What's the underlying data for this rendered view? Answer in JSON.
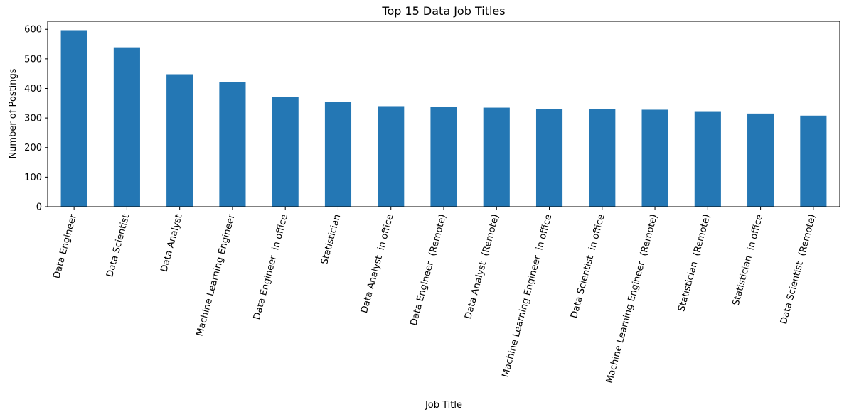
{
  "chart_data": {
    "type": "bar",
    "title": "Top 15 Data Job Titles",
    "xlabel": "Job Title",
    "ylabel": "Number of Postings",
    "categories": [
      "Data Engineer",
      "Data Scientist",
      "Data Analyst",
      "Machine Learning Engineer",
      "Data Engineer  in office",
      "Statistician",
      "Data Analyst  in office",
      "Data Engineer  (Remote)",
      "Data Analyst  (Remote)",
      "Machine Learning Engineer  in office",
      "Data Scientist  in office",
      "Machine Learning Engineer  (Remote)",
      "Statistician  (Remote)",
      "Statistician  in office",
      "Data Scientist  (Remote)"
    ],
    "values": [
      597,
      539,
      448,
      421,
      371,
      355,
      340,
      338,
      335,
      330,
      330,
      328,
      323,
      315,
      308
    ],
    "ylim": [
      0,
      627
    ],
    "yticks": [
      0,
      100,
      200,
      300,
      400,
      500,
      600
    ],
    "bar_color": "#2477b4",
    "grid": false,
    "legend": "none"
  }
}
